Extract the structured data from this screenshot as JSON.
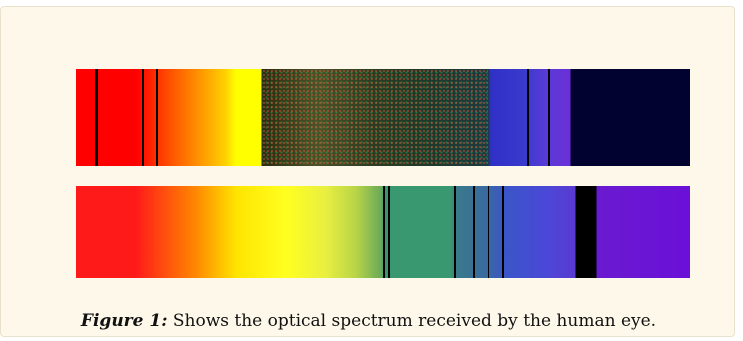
{
  "figure": {
    "label": "Figure 1:",
    "caption": " Shows the optical spectrum received by the human eye."
  }
}
